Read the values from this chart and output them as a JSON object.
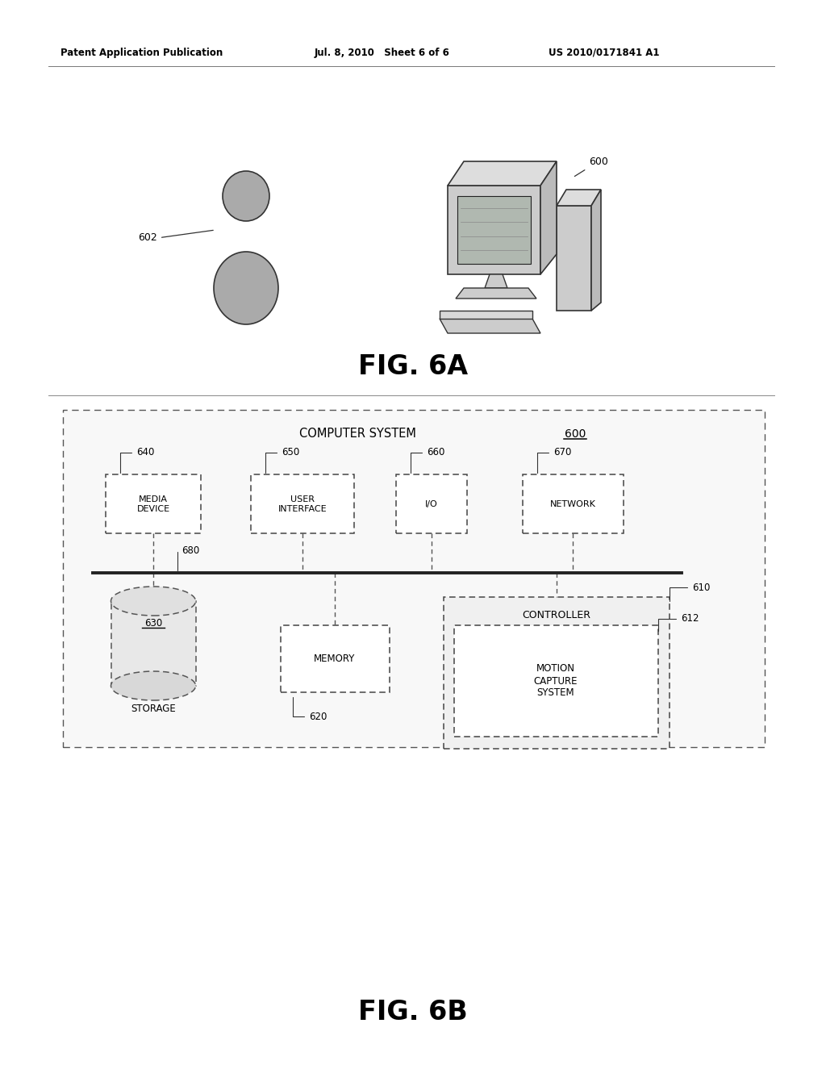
{
  "header_left": "Patent Application Publication",
  "header_mid": "Jul. 8, 2010   Sheet 6 of 6",
  "header_right": "US 2010/0171841 A1",
  "fig6a_label": "FIG. 6A",
  "fig6b_label": "FIG. 6B",
  "computer_system_label": "COMPUTER SYSTEM",
  "ref_600": "600",
  "ref_602": "602",
  "ref_610": "610",
  "ref_612": "612",
  "ref_620": "620",
  "ref_630": "630",
  "ref_640": "640",
  "ref_650": "650",
  "ref_660": "660",
  "ref_670": "670",
  "ref_680": "680",
  "box_media": "MEDIA\nDEVICE",
  "box_user": "USER\nINTERFACE",
  "box_io": "I/O",
  "box_network": "NETWORK",
  "box_memory": "MEMORY",
  "box_storage": "STORAGE",
  "box_controller": "CONTROLLER",
  "box_motion": "MOTION\nCAPTURE\nSYSTEM",
  "bg_color": "#ffffff",
  "box_color": "#ffffff",
  "border_color": "#444444",
  "text_color": "#000000"
}
